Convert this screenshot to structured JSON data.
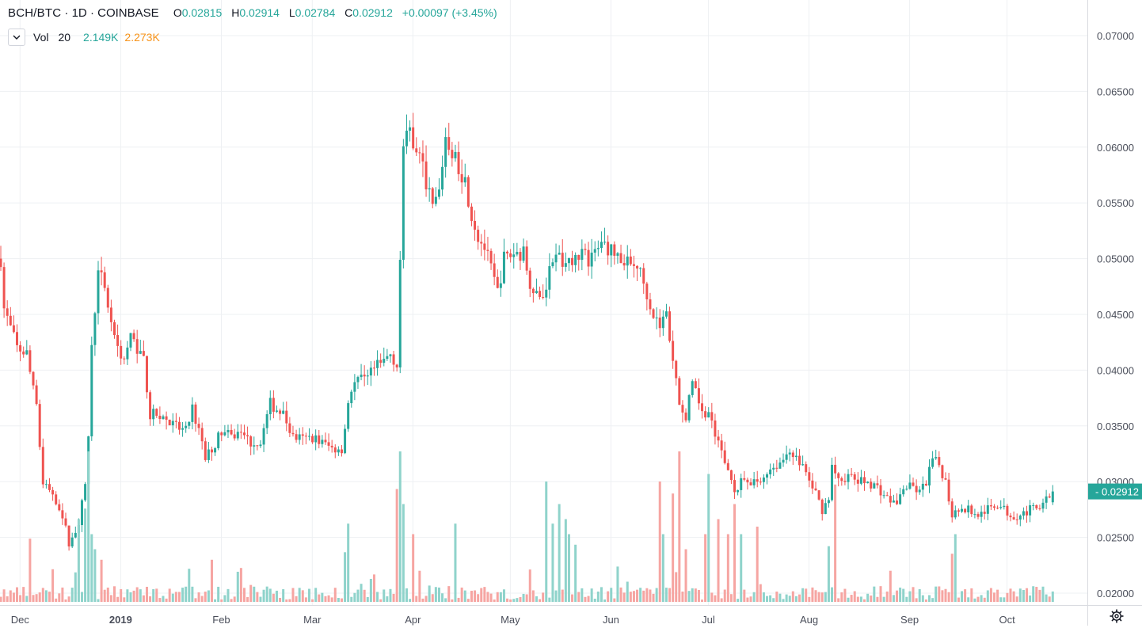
{
  "header": {
    "symbol": "BCH/BTC",
    "interval": "1D",
    "exchange": "COINBASE",
    "ohlc": {
      "o_label": "O",
      "o_value": "0.02815",
      "h_label": "H",
      "h_value": "0.02914",
      "l_label": "L",
      "l_value": "0.02784",
      "c_label": "C",
      "c_value": "0.02912",
      "change": "+0.00097 (+3.45%)"
    }
  },
  "volume_legend": {
    "name": "Vol",
    "length": "20",
    "value": "2.149K",
    "ma_value": "2.273K",
    "collapse_icon": "chevron-down-icon"
  },
  "colors": {
    "up": "#26a69a",
    "down": "#ef5350",
    "up_volume": "#8fd3cb",
    "down_volume": "#f6a5a2",
    "grid": "#eef0f3",
    "axis_text": "#4a4e5a",
    "price_tag": "#26a69a",
    "ma": "#f7931a"
  },
  "chart_data": {
    "type": "candlestick",
    "symbol": "BCH/BTC",
    "interval": "1D",
    "exchange": "COINBASE",
    "y_axis": {
      "ticks": [
        "0.07000",
        "0.06500",
        "0.06000",
        "0.05500",
        "0.05000",
        "0.04500",
        "0.04000",
        "0.03500",
        "0.03000",
        "0.02500",
        "0.02000"
      ],
      "range": [
        0.0195,
        0.0718
      ],
      "last_price_label": "0.02912",
      "last_price": 0.02912
    },
    "x_axis": {
      "ticks": [
        {
          "label": "Dec",
          "day": 0
        },
        {
          "label": "2019",
          "day": 31
        },
        {
          "label": "Feb",
          "day": 62
        },
        {
          "label": "Mar",
          "day": 90
        },
        {
          "label": "Apr",
          "day": 121
        },
        {
          "label": "May",
          "day": 151
        },
        {
          "label": "Jun",
          "day": 182
        },
        {
          "label": "Jul",
          "day": 212
        },
        {
          "label": "Aug",
          "day": 243
        },
        {
          "label": "Sep",
          "day": 274
        },
        {
          "label": "Oct",
          "day": 304
        }
      ],
      "start_day": -3,
      "end_day": 328
    },
    "close_path": [
      [
        -3,
        0.05
      ],
      [
        -2,
        0.0455
      ],
      [
        2,
        0.042
      ],
      [
        5,
        0.0415
      ],
      [
        8,
        0.0365
      ],
      [
        10,
        0.03
      ],
      [
        13,
        0.029
      ],
      [
        16,
        0.027
      ],
      [
        18,
        0.0245
      ],
      [
        21,
        0.026
      ],
      [
        23,
        0.03
      ],
      [
        24,
        0.034
      ],
      [
        25,
        0.042
      ],
      [
        27,
        0.0495
      ],
      [
        29,
        0.047
      ],
      [
        31,
        0.0445
      ],
      [
        33,
        0.042
      ],
      [
        35,
        0.041
      ],
      [
        37,
        0.043
      ],
      [
        39,
        0.042
      ],
      [
        41,
        0.041
      ],
      [
        43,
        0.036
      ],
      [
        46,
        0.036
      ],
      [
        50,
        0.035
      ],
      [
        54,
        0.0345
      ],
      [
        56,
        0.0365
      ],
      [
        58,
        0.0345
      ],
      [
        60,
        0.032
      ],
      [
        62,
        0.033
      ],
      [
        65,
        0.0345
      ],
      [
        68,
        0.034
      ],
      [
        71,
        0.0345
      ],
      [
        74,
        0.0335
      ],
      [
        77,
        0.0335
      ],
      [
        80,
        0.037
      ],
      [
        84,
        0.036
      ],
      [
        87,
        0.034
      ],
      [
        90,
        0.0338
      ],
      [
        93,
        0.034
      ],
      [
        96,
        0.0335
      ],
      [
        99,
        0.033
      ],
      [
        102,
        0.033
      ],
      [
        105,
        0.0385
      ],
      [
        108,
        0.0395
      ],
      [
        111,
        0.04
      ],
      [
        114,
        0.0405
      ],
      [
        117,
        0.0415
      ],
      [
        119,
        0.0405
      ],
      [
        120,
        0.05
      ],
      [
        121,
        0.06
      ],
      [
        123,
        0.0615
      ],
      [
        125,
        0.06
      ],
      [
        128,
        0.057
      ],
      [
        130,
        0.0545
      ],
      [
        132,
        0.056
      ],
      [
        134,
        0.061
      ],
      [
        137,
        0.059
      ],
      [
        140,
        0.057
      ],
      [
        142,
        0.054
      ],
      [
        144,
        0.052
      ],
      [
        146,
        0.051
      ],
      [
        148,
        0.049
      ],
      [
        150,
        0.047
      ],
      [
        152,
        0.05
      ],
      [
        155,
        0.0505
      ],
      [
        158,
        0.0505
      ],
      [
        160,
        0.048
      ],
      [
        162,
        0.047
      ],
      [
        164,
        0.0465
      ],
      [
        166,
        0.049
      ],
      [
        168,
        0.0505
      ],
      [
        170,
        0.0495
      ],
      [
        172,
        0.05
      ],
      [
        175,
        0.0505
      ],
      [
        178,
        0.05
      ],
      [
        180,
        0.0505
      ],
      [
        182,
        0.0515
      ],
      [
        184,
        0.051
      ],
      [
        186,
        0.0505
      ],
      [
        188,
        0.05
      ],
      [
        190,
        0.0495
      ],
      [
        193,
        0.0495
      ],
      [
        196,
        0.047
      ],
      [
        198,
        0.045
      ],
      [
        200,
        0.044
      ],
      [
        202,
        0.045
      ],
      [
        204,
        0.041
      ],
      [
        206,
        0.037
      ],
      [
        208,
        0.036
      ],
      [
        210,
        0.0385
      ],
      [
        213,
        0.0365
      ],
      [
        215,
        0.036
      ],
      [
        217,
        0.034
      ],
      [
        219,
        0.0325
      ],
      [
        221,
        0.031
      ],
      [
        223,
        0.029
      ],
      [
        225,
        0.03
      ],
      [
        227,
        0.0295
      ],
      [
        229,
        0.03
      ],
      [
        231,
        0.03
      ],
      [
        233,
        0.031
      ],
      [
        236,
        0.0315
      ],
      [
        238,
        0.032
      ],
      [
        240,
        0.033
      ],
      [
        242,
        0.032
      ],
      [
        244,
        0.0315
      ],
      [
        246,
        0.03
      ],
      [
        248,
        0.029
      ],
      [
        250,
        0.0275
      ],
      [
        252,
        0.0285
      ],
      [
        253,
        0.0315
      ],
      [
        255,
        0.03
      ],
      [
        258,
        0.0305
      ],
      [
        261,
        0.03
      ],
      [
        264,
        0.03
      ],
      [
        267,
        0.0295
      ],
      [
        270,
        0.0285
      ],
      [
        273,
        0.028
      ],
      [
        275,
        0.0295
      ],
      [
        278,
        0.0295
      ],
      [
        280,
        0.029
      ],
      [
        282,
        0.03
      ],
      [
        284,
        0.032
      ],
      [
        286,
        0.0315
      ],
      [
        288,
        0.03
      ],
      [
        290,
        0.027
      ],
      [
        292,
        0.0275
      ],
      [
        295,
        0.0275
      ],
      [
        298,
        0.027
      ],
      [
        301,
        0.0275
      ],
      [
        304,
        0.028
      ],
      [
        306,
        0.0275
      ],
      [
        308,
        0.027
      ],
      [
        311,
        0.027
      ],
      [
        314,
        0.0275
      ],
      [
        316,
        0.0275
      ],
      [
        318,
        0.0285
      ],
      [
        320,
        0.0283
      ],
      [
        321,
        0.0291
      ]
    ],
    "volume": {
      "ma_length": 20,
      "last": "2.149K",
      "last_ma": "2.273K",
      "spikes": [
        [
          6,
          0.42
        ],
        [
          21,
          0.55
        ],
        [
          23,
          0.62
        ],
        [
          24,
          1.0
        ],
        [
          25,
          0.45
        ],
        [
          26,
          0.35
        ],
        [
          28,
          0.28
        ],
        [
          55,
          0.22
        ],
        [
          62,
          0.28
        ],
        [
          103,
          0.33
        ],
        [
          104,
          0.52
        ],
        [
          119,
          0.75
        ],
        [
          120,
          1.0
        ],
        [
          121,
          0.65
        ],
        [
          124,
          0.45
        ],
        [
          137,
          0.52
        ],
        [
          165,
          0.8
        ],
        [
          167,
          0.52
        ],
        [
          169,
          0.65
        ],
        [
          171,
          0.55
        ],
        [
          172,
          0.45
        ],
        [
          174,
          0.38
        ],
        [
          200,
          0.8
        ],
        [
          201,
          0.45
        ],
        [
          204,
          0.72
        ],
        [
          206,
          1.1
        ],
        [
          208,
          0.35
        ],
        [
          214,
          0.45
        ],
        [
          215,
          0.85
        ],
        [
          218,
          0.55
        ],
        [
          221,
          0.45
        ],
        [
          223,
          0.65
        ],
        [
          225,
          0.45
        ],
        [
          230,
          0.5
        ],
        [
          252,
          0.37
        ],
        [
          254,
          0.78
        ],
        [
          290,
          0.32
        ],
        [
          291,
          0.45
        ]
      ]
    }
  }
}
